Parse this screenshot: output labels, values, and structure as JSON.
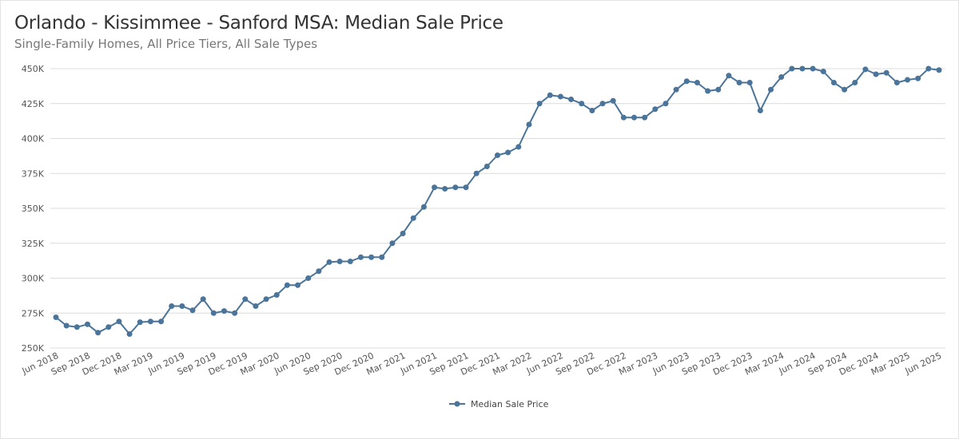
{
  "title": "Orlando - Kissimmee - Sanford MSA: Median Sale Price",
  "subtitle": "Single-Family Homes, All Price Tiers, All Sale Types",
  "chart_data": {
    "type": "line",
    "title": "Orlando - Kissimmee - Sanford MSA: Median Sale Price",
    "subtitle": "Single-Family Homes, All Price Tiers, All Sale Types",
    "xlabel": "",
    "ylabel": "",
    "ylim": [
      250000,
      450000
    ],
    "yticks": [
      250000,
      275000,
      300000,
      325000,
      350000,
      375000,
      400000,
      425000,
      450000
    ],
    "ytick_labels": [
      "250K",
      "275K",
      "300K",
      "325K",
      "350K",
      "375K",
      "400K",
      "425K",
      "450K"
    ],
    "start_month": "2018-06",
    "end_month": "2025-06",
    "xtick_labels": [
      "Jun 2018",
      "Sep 2018",
      "Dec 2018",
      "Mar 2019",
      "Jun 2019",
      "Sep 2019",
      "Dec 2019",
      "Mar 2020",
      "Jun 2020",
      "Sep 2020",
      "Dec 2020",
      "Mar 2021",
      "Jun 2021",
      "Sep 2021",
      "Dec 2021",
      "Mar 2022",
      "Jun 2022",
      "Sep 2022",
      "Dec 2022",
      "Mar 2023",
      "Jun 2023",
      "Sep 2023",
      "Dec 2023",
      "Mar 2024",
      "Jun 2024",
      "Sep 2024",
      "Dec 2024",
      "Mar 2025",
      "Jun 2025"
    ],
    "grid": true,
    "legend_position": "bottom",
    "color": "#4a7499",
    "series": [
      {
        "name": "Median Sale Price",
        "values": [
          272000,
          266000,
          265000,
          267000,
          261000,
          265000,
          269000,
          260000,
          268500,
          269000,
          269000,
          280000,
          280000,
          277000,
          285000,
          275000,
          276500,
          275000,
          285000,
          280000,
          285000,
          288000,
          295000,
          295000,
          300000,
          305000,
          311500,
          312000,
          312000,
          315000,
          315000,
          315000,
          325000,
          332000,
          343000,
          351000,
          365000,
          364000,
          365000,
          365000,
          375000,
          380000,
          388000,
          390000,
          394000,
          410000,
          425000,
          431000,
          430000,
          428000,
          425000,
          420000,
          425000,
          427000,
          415000,
          415000,
          415000,
          421000,
          425000,
          435000,
          441000,
          440000,
          434000,
          435000,
          445000,
          440000,
          440000,
          420000,
          435000,
          444000,
          450000,
          450000,
          450000,
          448000,
          440000,
          435000,
          440000,
          449500,
          446000,
          447000,
          440000,
          442000,
          443000,
          450000,
          449000
        ]
      }
    ]
  }
}
